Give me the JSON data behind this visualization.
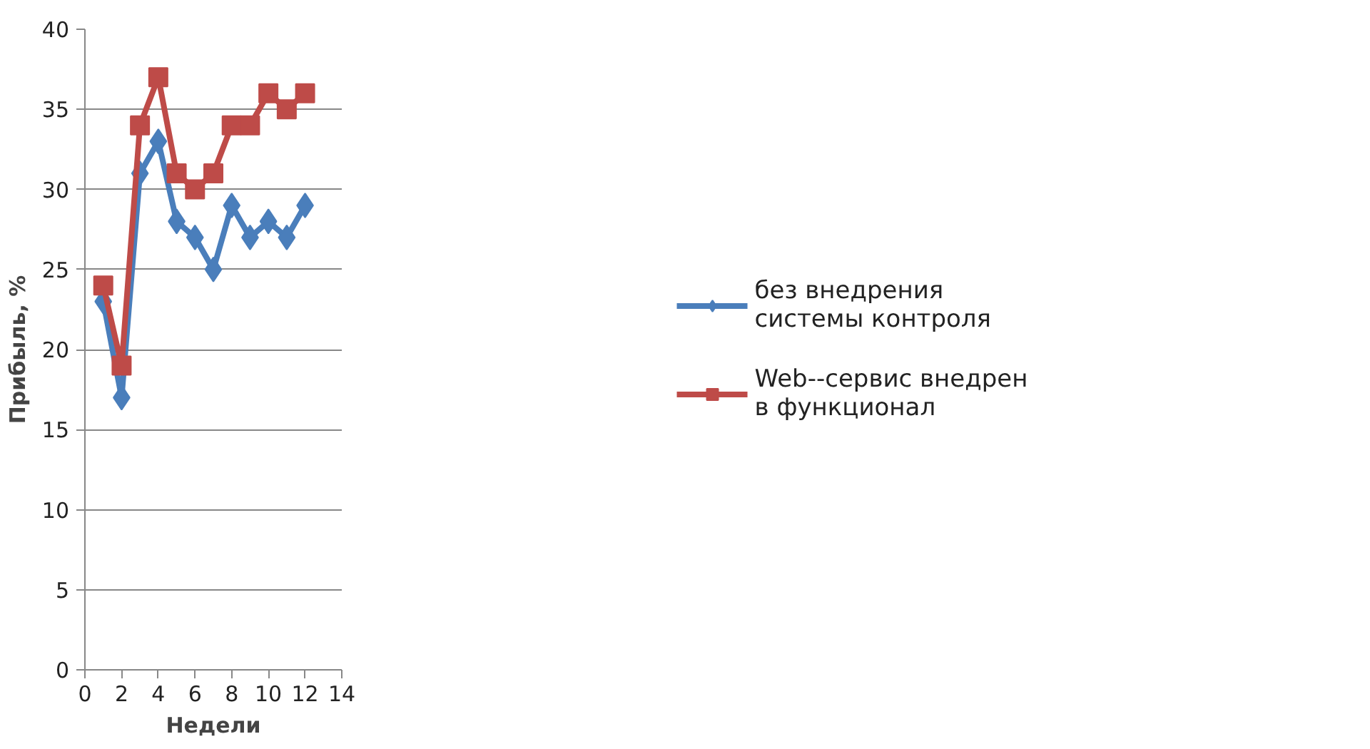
{
  "chart_data": {
    "type": "line",
    "xlabel": "Недели",
    "ylabel": "Прибыль, %",
    "x": [
      1,
      2,
      3,
      4,
      5,
      6,
      7,
      8,
      9,
      10,
      11,
      12
    ],
    "series": [
      {
        "name": "без внедрения системы контроля",
        "color": "#4a7ebb",
        "marker": "diamond",
        "values": [
          23,
          17,
          31,
          33,
          28,
          27,
          25,
          29,
          27,
          28,
          27,
          29
        ]
      },
      {
        "name": "Web--сервис внедрен в функционал",
        "color": "#be4b48",
        "marker": "square",
        "values": [
          24,
          19,
          34,
          37,
          31,
          30,
          31,
          34,
          34,
          36,
          35,
          36
        ]
      }
    ],
    "xlim": [
      0,
      14
    ],
    "xticks": [
      0,
      2,
      4,
      6,
      8,
      10,
      12,
      14
    ],
    "ylim": [
      0,
      40
    ],
    "yticks": [
      0,
      5,
      10,
      15,
      20,
      25,
      30,
      35,
      40
    ],
    "grid": "y",
    "legend": "right",
    "line_style": "solid"
  }
}
